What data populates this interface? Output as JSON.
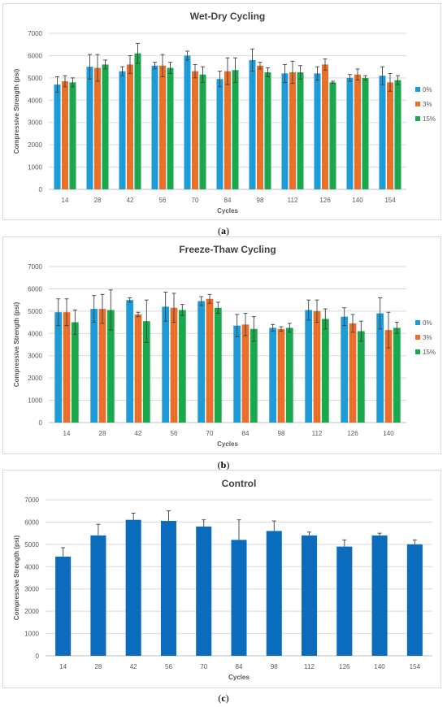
{
  "captions": [
    "(",
    "a",
    ")",
    "(",
    "b",
    ")",
    "(",
    "c",
    ")"
  ],
  "colors": {
    "s0": "#1e9bd7",
    "s3": "#e8702a",
    "s15": "#1aa84c",
    "control": "#0b6bbd",
    "error": "#404040",
    "grid": "#d9d9d9",
    "text": "#595959"
  },
  "chart_data": [
    {
      "type": "bar",
      "title": "Wet-Dry Cycling",
      "xlabel": "Cycles",
      "ylabel": "Compressive Strength (psi)",
      "ylim": [
        0,
        7000
      ],
      "yticks": [
        "0",
        "1000",
        "2000",
        "3000",
        "4000",
        "5000",
        "6000",
        "7000"
      ],
      "categories": [
        "14",
        "28",
        "42",
        "56",
        "70",
        "84",
        "98",
        "112",
        "126",
        "140",
        "154"
      ],
      "legend": "right",
      "series": [
        {
          "name": "0%",
          "color": "#1e9bd7",
          "values": [
            4700,
            5500,
            5300,
            5550,
            6000,
            4950,
            5800,
            5200,
            5200,
            5000,
            5100
          ],
          "errors": [
            350,
            550,
            200,
            150,
            200,
            350,
            500,
            400,
            300,
            150,
            400
          ]
        },
        {
          "name": "3%",
          "color": "#e8702a",
          "values": [
            4850,
            5450,
            5600,
            5550,
            5300,
            5300,
            5550,
            5250,
            5600,
            5150,
            4800
          ],
          "errors": [
            250,
            600,
            400,
            500,
            300,
            600,
            150,
            500,
            250,
            250,
            400
          ]
        },
        {
          "name": "15%",
          "color": "#1aa84c",
          "values": [
            4800,
            5600,
            6100,
            5450,
            5150,
            5350,
            5250,
            5250,
            4800,
            5000,
            4900
          ],
          "errors": [
            200,
            200,
            450,
            250,
            350,
            550,
            200,
            300,
            50,
            100,
            200
          ]
        }
      ]
    },
    {
      "type": "bar",
      "title": "Freeze-Thaw Cycling",
      "xlabel": "Cycles",
      "ylabel": "Compressive Strength (psi)",
      "ylim": [
        0,
        7000
      ],
      "yticks": [
        "0",
        "1000",
        "2000",
        "3000",
        "4000",
        "5000",
        "6000",
        "7000"
      ],
      "categories": [
        "14",
        "28",
        "42",
        "56",
        "70",
        "84",
        "98",
        "112",
        "126",
        "140"
      ],
      "legend": "right",
      "series": [
        {
          "name": "0%",
          "color": "#1e9bd7",
          "values": [
            4950,
            5100,
            5500,
            5200,
            5450,
            4350,
            4250,
            5050,
            4750,
            4900
          ],
          "errors": [
            600,
            600,
            100,
            650,
            200,
            500,
            150,
            450,
            400,
            700
          ]
        },
        {
          "name": "3%",
          "color": "#e8702a",
          "values": [
            4950,
            5100,
            4850,
            5150,
            5550,
            4400,
            4200,
            5000,
            4450,
            4150
          ],
          "errors": [
            600,
            650,
            100,
            650,
            200,
            500,
            100,
            500,
            400,
            800
          ]
        },
        {
          "name": "15%",
          "color": "#1aa84c",
          "values": [
            4500,
            5050,
            4550,
            5050,
            5150,
            4200,
            4250,
            4650,
            4100,
            4250
          ],
          "errors": [
            550,
            900,
            950,
            250,
            250,
            550,
            200,
            450,
            450,
            250
          ]
        }
      ]
    },
    {
      "type": "bar",
      "title": "Control",
      "xlabel": "Cycles",
      "ylabel": "Compressive Strength (psi)",
      "ylim": [
        0,
        7000
      ],
      "yticks": [
        "0",
        "1000",
        "2000",
        "3000",
        "4000",
        "5000",
        "6000",
        "7000"
      ],
      "categories": [
        "14",
        "28",
        "42",
        "56",
        "70",
        "84",
        "98",
        "112",
        "126",
        "140",
        "154"
      ],
      "series": [
        {
          "color": "#0b6bbd",
          "values": [
            4450,
            5400,
            6100,
            6050,
            5800,
            5200,
            5600,
            5400,
            4900,
            5400,
            5000
          ],
          "errors": [
            400,
            500,
            300,
            450,
            300,
            900,
            450,
            150,
            300,
            100,
            200
          ]
        }
      ]
    }
  ]
}
